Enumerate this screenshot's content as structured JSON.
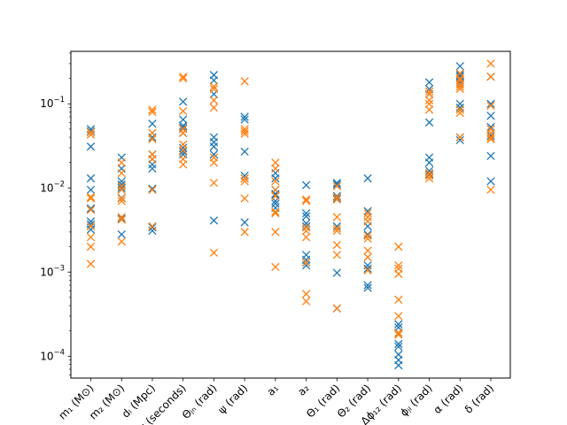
{
  "chart_data": {
    "type": "scatter",
    "title": "",
    "xlabel": "",
    "ylabel": "",
    "yscale": "log",
    "ylim": [
      5.5e-05,
      0.42
    ],
    "grid": false,
    "legend": "none",
    "marker": "x",
    "categories": [
      "m₁ (M⊙)",
      "m₂ (M⊙)",
      "dₗ (Mpc)",
      "t_c (seconds)",
      "Θⱼₙ (rad)",
      "ψ (rad)",
      "a₁",
      "a₂",
      "Θ₁ (rad)",
      "Θ₂ (rad)",
      "Δϕ₁₂ (rad)",
      "ϕⱼₗ (rad)",
      "α (rad)",
      "δ (rad)"
    ],
    "yticks": [
      {
        "value": 0.0001,
        "base": "10",
        "exp": "−4"
      },
      {
        "value": 0.001,
        "base": "10",
        "exp": "−3"
      },
      {
        "value": 0.01,
        "base": "10",
        "exp": "−2"
      },
      {
        "value": 0.1,
        "base": "10",
        "exp": "−1"
      }
    ],
    "series": [
      {
        "color": "#1f77b4",
        "values": [
          [
            0.05,
            0.047,
            0.031,
            0.013,
            0.0095,
            0.0057,
            0.0056,
            0.004,
            0.0037,
            0.0032
          ],
          [
            0.023,
            0.017,
            0.012,
            0.011,
            0.01,
            0.0076,
            0.0043,
            0.0028
          ],
          [
            0.058,
            0.04,
            0.025,
            0.022,
            0.019,
            0.017,
            0.0098,
            0.0034,
            0.0031
          ],
          [
            0.106,
            0.065,
            0.055,
            0.052,
            0.045,
            0.03,
            0.027,
            0.025
          ],
          [
            0.22,
            0.19,
            0.13,
            0.04,
            0.035,
            0.031,
            0.025,
            0.0041
          ],
          [
            0.07,
            0.065,
            0.027,
            0.014,
            0.013,
            0.0039
          ],
          [
            0.015,
            0.013,
            0.0095,
            0.0085,
            0.0083,
            0.007,
            0.0065,
            0.0058
          ],
          [
            0.0108,
            0.005,
            0.0046,
            0.0038,
            0.0035,
            0.0016,
            0.0014,
            0.0013,
            0.0012
          ],
          [
            0.0115,
            0.011,
            0.008,
            0.0075,
            0.0035,
            0.00098,
            0.00037
          ],
          [
            0.013,
            0.0053,
            0.0035,
            0.0028,
            0.0012,
            0.0011,
            0.0007,
            0.00065
          ],
          [
            0.00024,
            0.00022,
            0.00019,
            0.00014,
            0.00013,
            0.000105,
            9e-05,
            7.8e-05
          ],
          [
            0.18,
            0.15,
            0.13,
            0.06,
            0.023,
            0.02,
            0.016,
            0.0145
          ],
          [
            0.28,
            0.22,
            0.21,
            0.18,
            0.1,
            0.09,
            0.04,
            0.037
          ],
          [
            0.21,
            0.1,
            0.072,
            0.053,
            0.042,
            0.024,
            0.012
          ]
        ]
      },
      {
        "color": "#ff7f0e",
        "values": [
          [
            0.046,
            0.043,
            0.0078,
            0.0075,
            0.0055,
            0.0035,
            0.0026,
            0.002,
            0.00125
          ],
          [
            0.02,
            0.015,
            0.0105,
            0.0095,
            0.0075,
            0.007,
            0.0045,
            0.0042,
            0.0023
          ],
          [
            0.085,
            0.08,
            0.045,
            0.038,
            0.025,
            0.022,
            0.0095,
            0.0035
          ],
          [
            0.21,
            0.2,
            0.082,
            0.05,
            0.045,
            0.033,
            0.028,
            0.022,
            0.019
          ],
          [
            0.16,
            0.15,
            0.11,
            0.09,
            0.023,
            0.02,
            0.0115,
            0.0017
          ],
          [
            0.185,
            0.05,
            0.047,
            0.044,
            0.013,
            0.012,
            0.0075,
            0.003
          ],
          [
            0.02,
            0.017,
            0.012,
            0.0095,
            0.008,
            0.0052,
            0.005,
            0.003,
            0.00115
          ],
          [
            0.0073,
            0.007,
            0.0034,
            0.0031,
            0.0026,
            0.0013,
            0.00055,
            0.00045
          ],
          [
            0.0105,
            0.0078,
            0.0073,
            0.0045,
            0.0033,
            0.0031,
            0.0021,
            0.0016,
            0.00037
          ],
          [
            0.005,
            0.0045,
            0.004,
            0.0027,
            0.0025,
            0.0018,
            0.0015,
            0.00105
          ],
          [
            0.002,
            0.0012,
            0.0011,
            0.00095,
            0.00047,
            0.0003,
            0.00019,
            0.00018
          ],
          [
            0.14,
            0.13,
            0.11,
            0.1,
            0.085,
            0.015,
            0.014,
            0.013
          ],
          [
            0.23,
            0.2,
            0.19,
            0.17,
            0.16,
            0.15,
            0.085,
            0.078,
            0.04
          ],
          [
            0.3,
            0.21,
            0.095,
            0.05,
            0.045,
            0.04,
            0.038,
            0.0095
          ]
        ]
      }
    ]
  }
}
